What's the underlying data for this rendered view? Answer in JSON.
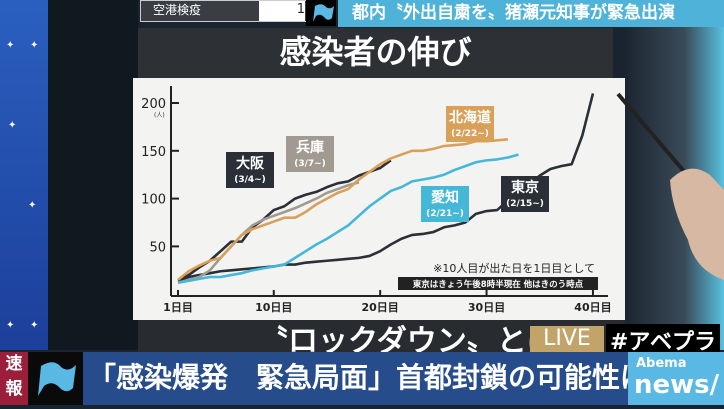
{
  "top": {
    "quarantine_label": "空港検疫",
    "quarantine_value": "1",
    "banner": "都内〝外出自粛を〟猪瀬元知事が緊急出演"
  },
  "chart_title": "感染者の伸び",
  "lower_text": "〝ロックダウン〟とは",
  "live": "LIVE",
  "hashtag": "#アベプラ",
  "ticker": {
    "badge": "速報",
    "headline": "「感染爆発　緊急局面」首都封鎖の可能性は",
    "logo_top": "Abema",
    "logo_bottom": "news/"
  },
  "chart_data": {
    "type": "line",
    "title": "感染者の伸び",
    "ylabel": "(人)",
    "xlabel": "",
    "ylim": [
      5,
      215
    ],
    "xlim": [
      1,
      41
    ],
    "yticks": [
      50,
      100,
      150,
      200
    ],
    "xticks": [
      {
        "v": 1,
        "label": "1日目"
      },
      {
        "v": 10,
        "label": "10日目"
      },
      {
        "v": 20,
        "label": "20日目"
      },
      {
        "v": 30,
        "label": "30日目"
      },
      {
        "v": 40,
        "label": "40日目"
      }
    ],
    "notes": [
      "※10人目が出た日を1日目として",
      "東京はきょう午後8時半現在 他はきのう時点"
    ],
    "series": [
      {
        "name": "東京",
        "start": "(2/15~)",
        "color": "#2b3038",
        "x0": 1,
        "values": [
          14,
          18,
          20,
          22,
          24,
          25,
          26,
          27,
          28,
          29,
          31,
          31,
          33,
          34,
          35,
          36,
          37,
          38,
          40,
          45,
          52,
          58,
          62,
          63,
          65,
          70,
          72,
          75,
          84,
          87,
          88,
          98,
          106,
          115,
          124,
          131,
          134,
          136,
          166,
          210
        ]
      },
      {
        "name": "大阪",
        "start": "(3/4~)",
        "color": "#2b3038",
        "x0": 1,
        "values": [
          15,
          20,
          28,
          35,
          45,
          55,
          55,
          70,
          78,
          88,
          92,
          100,
          104,
          107,
          112,
          116,
          118,
          124,
          128,
          132,
          140
        ]
      },
      {
        "name": "兵庫",
        "start": "(3/7~)",
        "color": "#a19a90",
        "x0": 1,
        "values": [
          12,
          15,
          18,
          25,
          38,
          50,
          62,
          72,
          78,
          82,
          86,
          90,
          95,
          100,
          106,
          110,
          114,
          117
        ]
      },
      {
        "name": "北海道",
        "start": "(2/22~)",
        "color": "#d9a05a",
        "x0": 1,
        "values": [
          15,
          24,
          30,
          35,
          38,
          50,
          62,
          68,
          72,
          76,
          80,
          80,
          86,
          94,
          100,
          106,
          110,
          120,
          128,
          136,
          142,
          146,
          150,
          150,
          152,
          155,
          156,
          157,
          160,
          160,
          161,
          162
        ]
      },
      {
        "name": "愛知",
        "start": "(2/21~)",
        "color": "#45b8d8",
        "x0": 1,
        "values": [
          12,
          14,
          16,
          18,
          18,
          20,
          22,
          25,
          27,
          29,
          31,
          38,
          45,
          52,
          58,
          65,
          72,
          82,
          92,
          100,
          108,
          112,
          118,
          120,
          122,
          125,
          130,
          134,
          138,
          140,
          141,
          143,
          146
        ]
      }
    ]
  }
}
